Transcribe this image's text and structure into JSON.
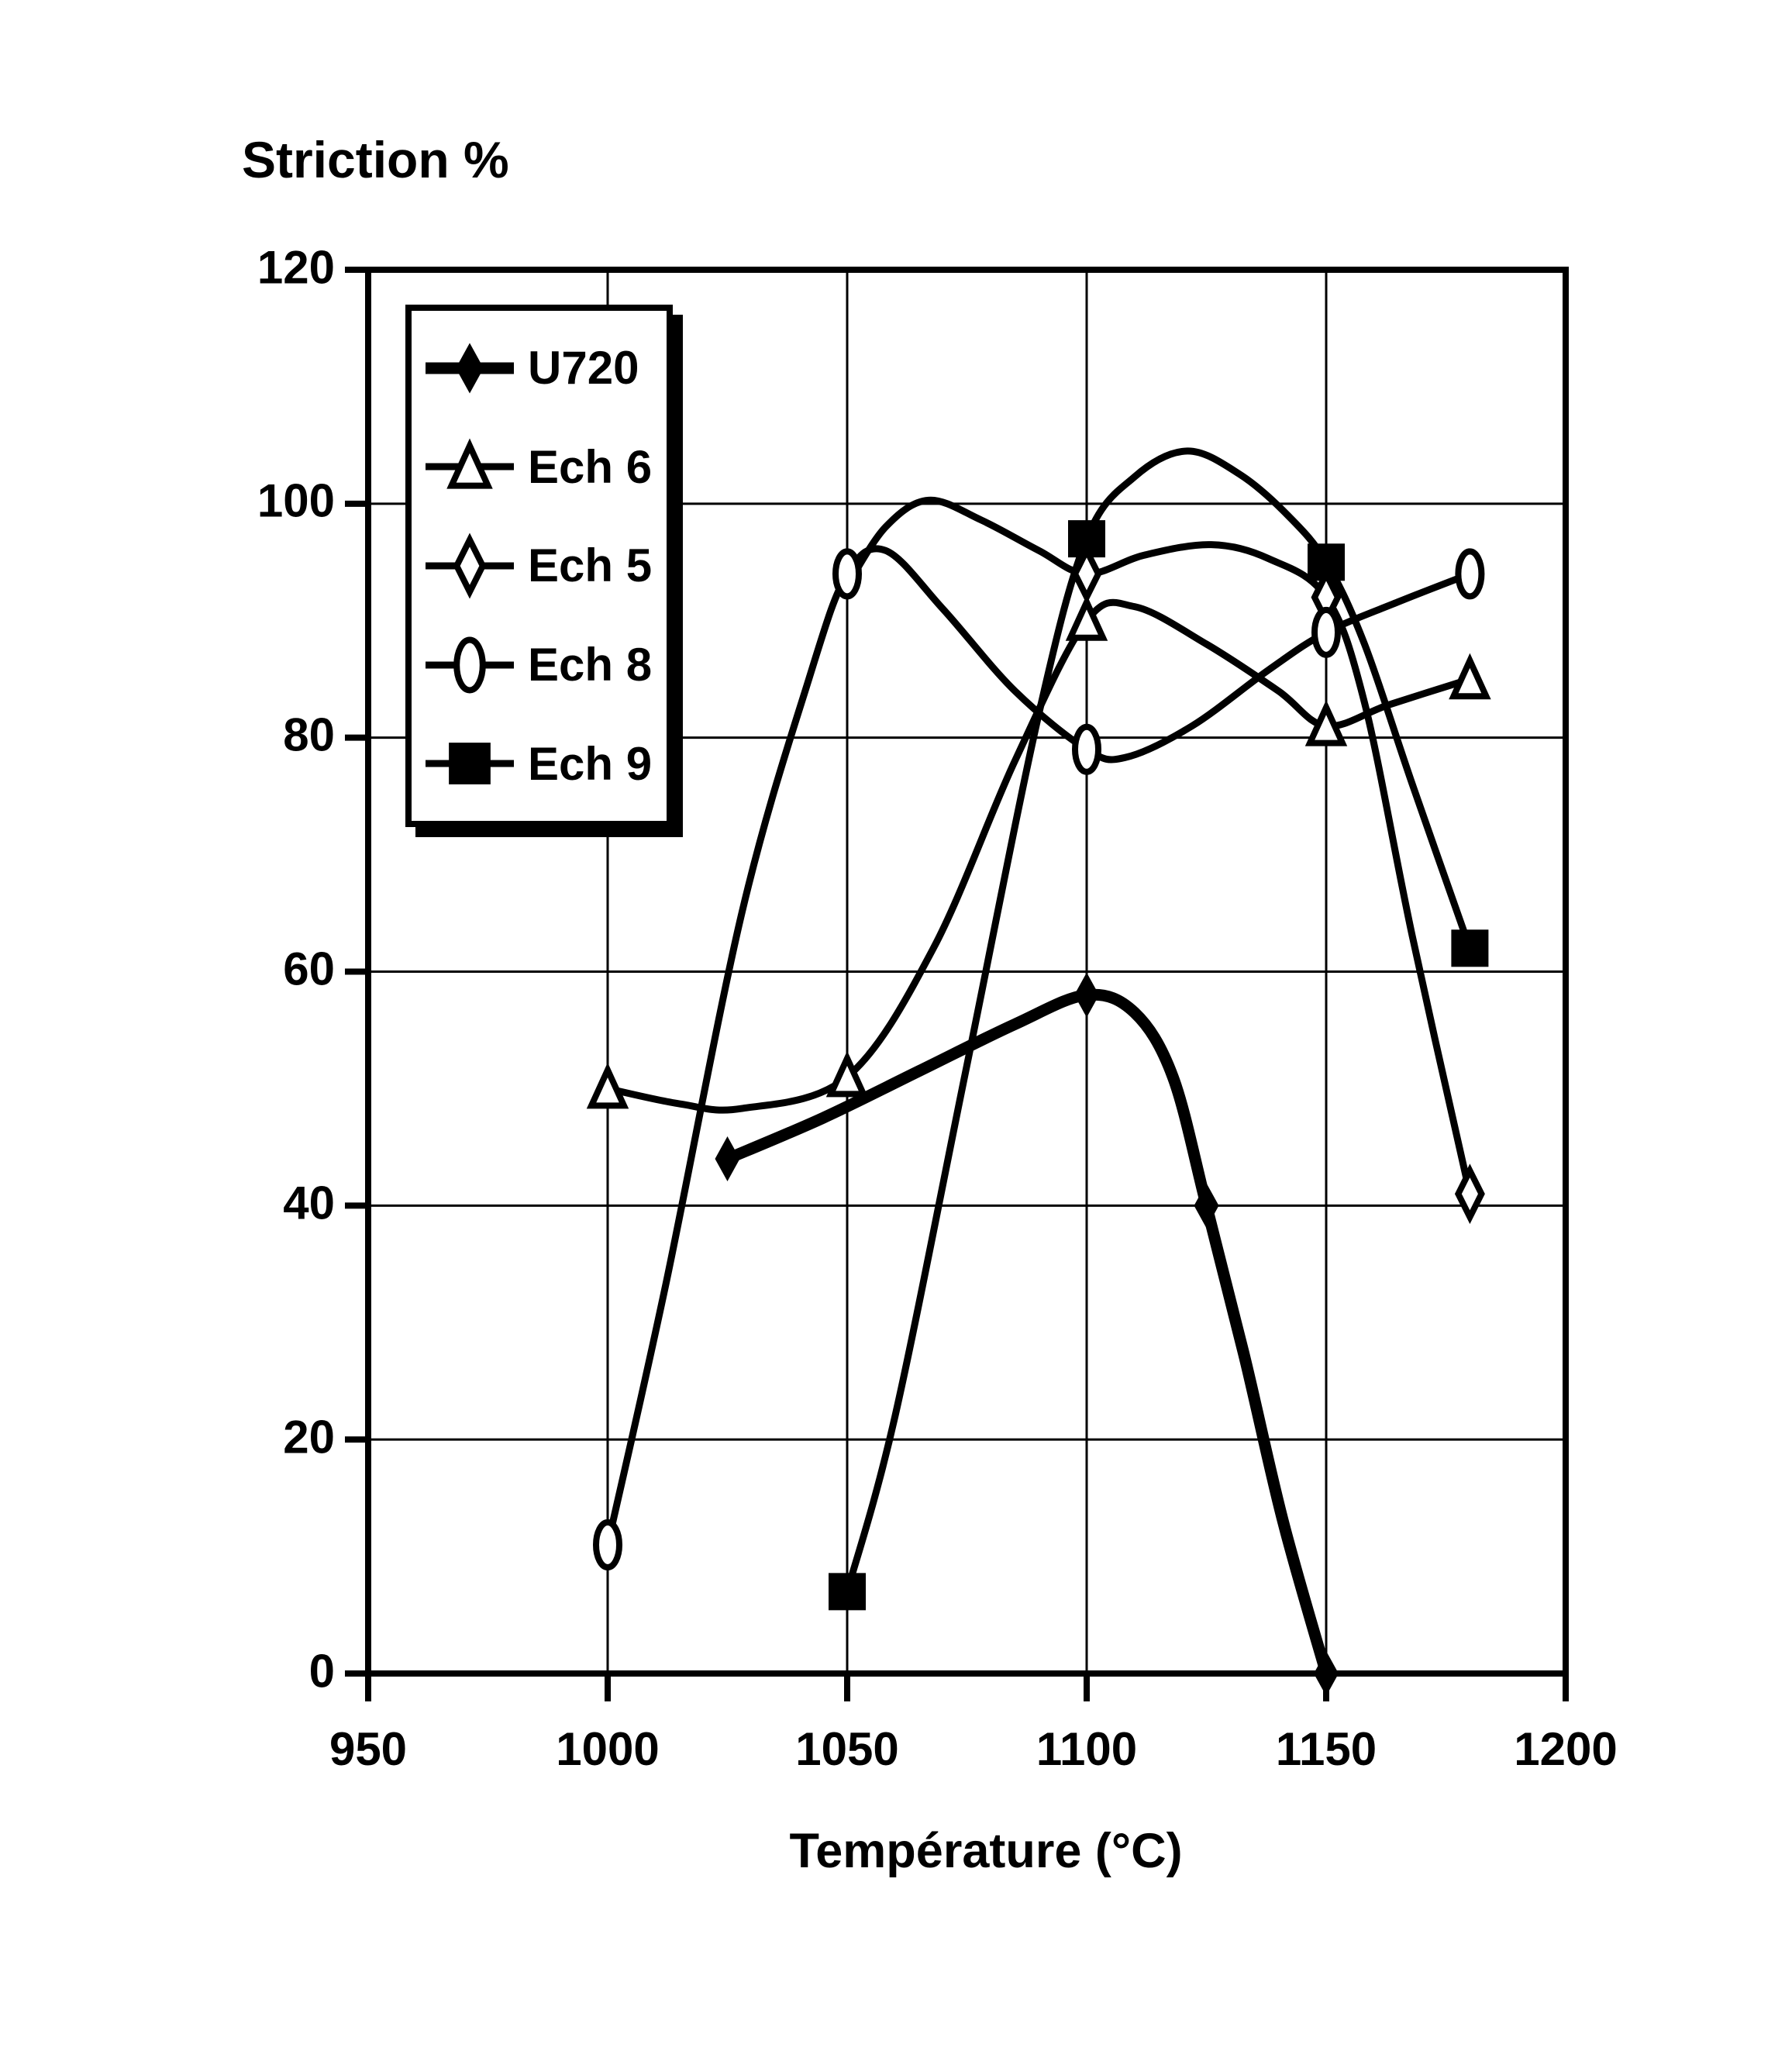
{
  "colors": {
    "ink": "#000000",
    "background": "#ffffff"
  },
  "legend": {
    "items": [
      {
        "label": "U720",
        "marker": "filled-diamond"
      },
      {
        "label": "Ech 6",
        "marker": "open-triangle"
      },
      {
        "label": "Ech 5",
        "marker": "open-diamond"
      },
      {
        "label": "Ech 8",
        "marker": "open-ellipse"
      },
      {
        "label": "Ech 9",
        "marker": "filled-square"
      }
    ]
  },
  "chart_data": {
    "type": "line",
    "title": "Striction %",
    "xlabel": "Température (°C)",
    "ylabel": "Striction %",
    "xlim": [
      950,
      1200
    ],
    "ylim": [
      0,
      120
    ],
    "xticks": [
      950,
      1000,
      1050,
      1100,
      1150,
      1200
    ],
    "yticks_top_to_bottom": [
      120,
      100,
      80,
      60,
      40,
      20,
      0
    ],
    "grid": true,
    "legend_position": "upper-left-inside",
    "series": [
      {
        "name": "Ech 5",
        "marker": "open-diamond",
        "thick": false,
        "x": [
          1050,
          1100,
          1150,
          1180
        ],
        "y": [
          93,
          94,
          92,
          41
        ],
        "marker_skip_x": [
          1050
        ],
        "curve": [
          [
            1050,
            93
          ],
          [
            1058,
            98
          ],
          [
            1067,
            100.3
          ],
          [
            1078,
            98.6
          ],
          [
            1090,
            96
          ],
          [
            1100,
            94
          ],
          [
            1112,
            95.6
          ],
          [
            1126,
            96.5
          ],
          [
            1138,
            95.3
          ],
          [
            1150,
            92
          ],
          [
            1158,
            83
          ],
          [
            1168,
            63
          ],
          [
            1180,
            41
          ]
        ]
      },
      {
        "name": "Ech 6",
        "marker": "open-triangle",
        "thick": false,
        "x": [
          1000,
          1050,
          1100,
          1150,
          1180
        ],
        "y": [
          50,
          51,
          90,
          81,
          85
        ],
        "marker_skip_x": [],
        "curve": [
          [
            1000,
            50
          ],
          [
            1015,
            48.7
          ],
          [
            1028,
            48.3
          ],
          [
            1050,
            51
          ],
          [
            1068,
            62
          ],
          [
            1085,
            78
          ],
          [
            1100,
            90
          ],
          [
            1110,
            91.2
          ],
          [
            1125,
            88
          ],
          [
            1140,
            84
          ],
          [
            1150,
            81
          ],
          [
            1163,
            82.8
          ],
          [
            1180,
            85
          ]
        ]
      },
      {
        "name": "Ech 9",
        "marker": "filled-square",
        "thick": false,
        "x": [
          1050,
          1100,
          1150,
          1180
        ],
        "y": [
          7,
          97,
          95,
          62
        ],
        "marker_skip_x": [],
        "curve": [
          [
            1050,
            7
          ],
          [
            1060,
            22
          ],
          [
            1075,
            52
          ],
          [
            1090,
            82
          ],
          [
            1100,
            97
          ],
          [
            1110,
            102.3
          ],
          [
            1121,
            104.5
          ],
          [
            1132,
            102.5
          ],
          [
            1142,
            99
          ],
          [
            1150,
            95
          ],
          [
            1158,
            88
          ],
          [
            1168,
            76
          ],
          [
            1180,
            62
          ]
        ]
      },
      {
        "name": "Ech 8",
        "marker": "open-ellipse",
        "thick": false,
        "x": [
          1000,
          1050,
          1100,
          1150,
          1180
        ],
        "y": [
          11,
          94,
          79,
          89,
          94
        ],
        "marker_skip_x": [],
        "curve": [
          [
            1000,
            11
          ],
          [
            1012,
            33
          ],
          [
            1028,
            65
          ],
          [
            1042,
            85
          ],
          [
            1050,
            94
          ],
          [
            1058,
            96
          ],
          [
            1070,
            91
          ],
          [
            1085,
            84
          ],
          [
            1100,
            79
          ],
          [
            1108,
            78.3
          ],
          [
            1122,
            81
          ],
          [
            1138,
            85.8
          ],
          [
            1150,
            89
          ],
          [
            1165,
            91.6
          ],
          [
            1180,
            94
          ]
        ]
      },
      {
        "name": "U720",
        "marker": "filled-diamond",
        "thick": true,
        "x": [
          1025,
          1100,
          1125,
          1150
        ],
        "y": [
          44,
          58,
          40,
          0
        ],
        "marker_skip_x": [],
        "curve": [
          [
            1025,
            44
          ],
          [
            1045,
            47.5
          ],
          [
            1065,
            51.5
          ],
          [
            1085,
            55.5
          ],
          [
            1100,
            58
          ],
          [
            1110,
            56.5
          ],
          [
            1118,
            51
          ],
          [
            1125,
            40
          ],
          [
            1133,
            27
          ],
          [
            1141,
            13
          ],
          [
            1150,
            0
          ]
        ]
      }
    ]
  }
}
